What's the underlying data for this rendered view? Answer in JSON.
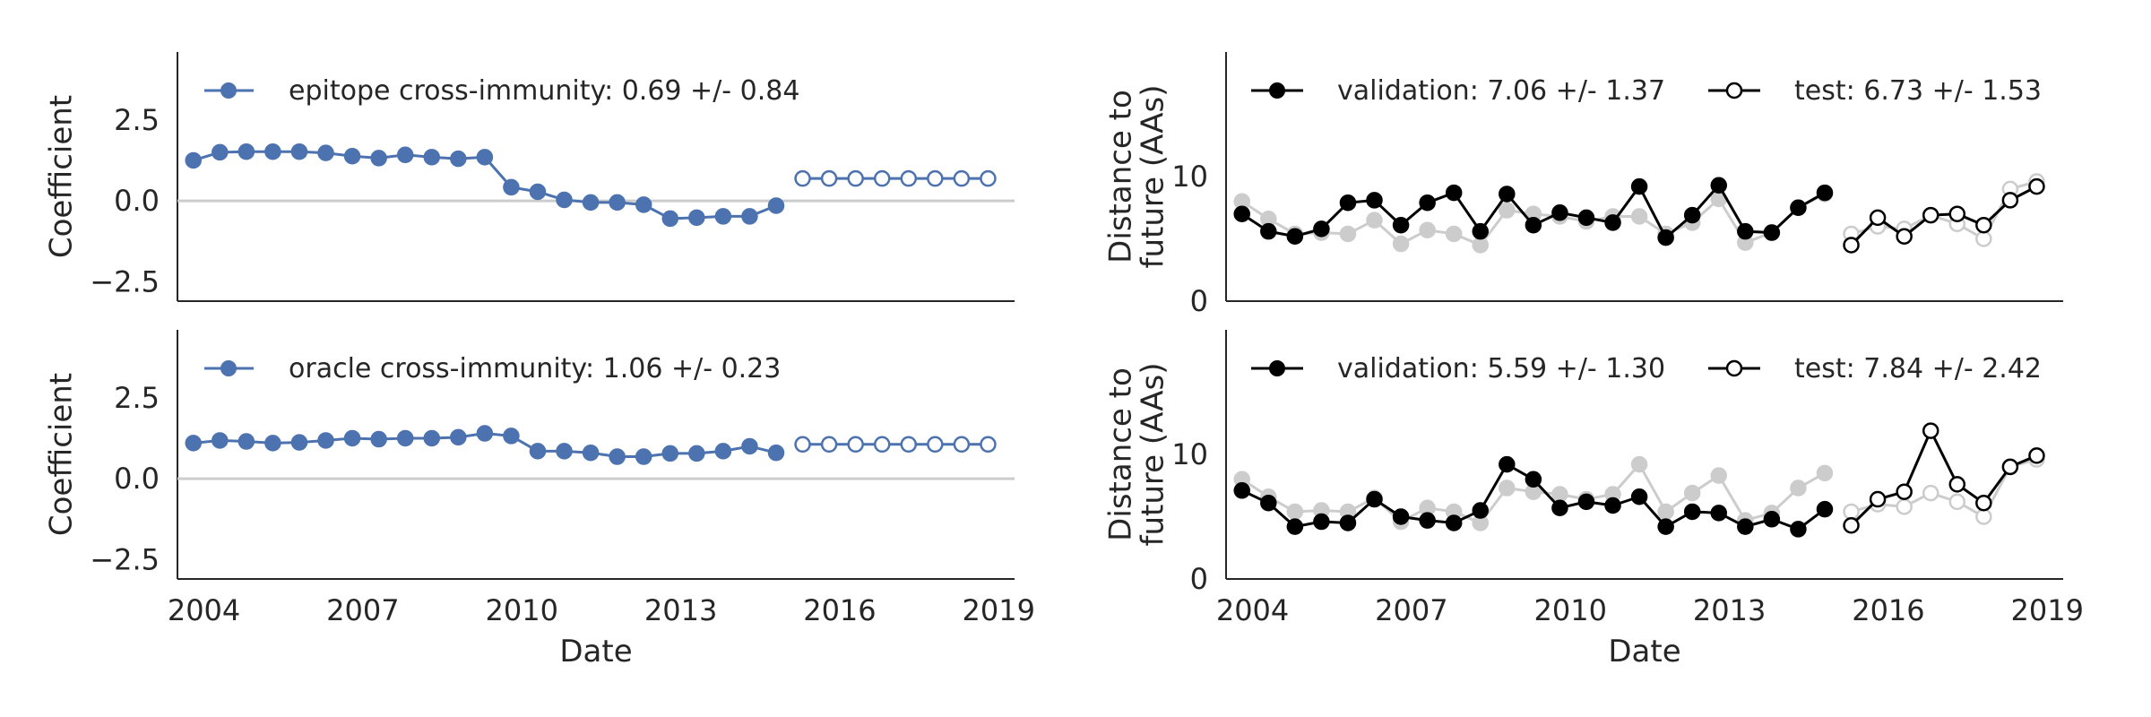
{
  "figure": {
    "x_axis_label": "Date",
    "x_ticks": [
      "2004",
      "2007",
      "2010",
      "2013",
      "2016",
      "2019"
    ]
  },
  "chart_data": [
    {
      "type": "line",
      "panel": "coefficient-top",
      "ylabel": "Coefficient",
      "xlabel": "",
      "xlim": [
        2003.5,
        2019.3
      ],
      "ylim": [
        -3.1,
        4.6
      ],
      "y_ticks": [
        2.5,
        0.0,
        -2.5
      ],
      "y_tick_labels": [
        "2.5",
        "0.0",
        "−2.5"
      ],
      "reference_line_y": 0,
      "reference_line_color": "#cccccc",
      "legend_placement": "top-left",
      "legend_label": "epitope cross-immunity: 0.69 +/- 0.84",
      "series_color": "#4c72b0",
      "validation": {
        "x": [
          2003.8,
          2004.3,
          2004.8,
          2005.3,
          2005.8,
          2006.3,
          2006.8,
          2007.3,
          2007.8,
          2008.3,
          2008.8,
          2009.3,
          2009.8,
          2010.3,
          2010.8,
          2011.3,
          2011.8,
          2012.3,
          2012.8,
          2013.3,
          2013.8,
          2014.3,
          2014.8
        ],
        "y": [
          1.25,
          1.5,
          1.52,
          1.52,
          1.52,
          1.48,
          1.38,
          1.32,
          1.42,
          1.35,
          1.3,
          1.35,
          0.42,
          0.28,
          0.03,
          -0.05,
          -0.05,
          -0.12,
          -0.55,
          -0.52,
          -0.48,
          -0.48,
          -0.15
        ]
      },
      "test": {
        "x": [
          2015.3,
          2015.8,
          2016.3,
          2016.8,
          2017.3,
          2017.8,
          2018.3,
          2018.8
        ],
        "y": [
          0.69,
          0.69,
          0.69,
          0.69,
          0.69,
          0.69,
          0.69,
          0.69
        ]
      }
    },
    {
      "type": "line",
      "panel": "coefficient-bottom",
      "ylabel": "Coefficient",
      "xlabel": "Date",
      "xlim": [
        2003.5,
        2019.3
      ],
      "ylim": [
        -3.1,
        4.6
      ],
      "y_ticks": [
        2.5,
        0.0,
        -2.5
      ],
      "y_tick_labels": [
        "2.5",
        "0.0",
        "−2.5"
      ],
      "reference_line_y": 0,
      "reference_line_color": "#cccccc",
      "legend_placement": "top-left",
      "legend_label": "oracle cross-immunity: 1.06 +/- 0.23",
      "series_color": "#4c72b0",
      "validation": {
        "x": [
          2003.8,
          2004.3,
          2004.8,
          2005.3,
          2005.8,
          2006.3,
          2006.8,
          2007.3,
          2007.8,
          2008.3,
          2008.8,
          2009.3,
          2009.8,
          2010.3,
          2010.8,
          2011.3,
          2011.8,
          2012.3,
          2012.8,
          2013.3,
          2013.8,
          2014.3,
          2014.8
        ],
        "y": [
          1.1,
          1.18,
          1.15,
          1.1,
          1.12,
          1.18,
          1.25,
          1.22,
          1.25,
          1.25,
          1.28,
          1.4,
          1.32,
          0.85,
          0.85,
          0.8,
          0.68,
          0.68,
          0.78,
          0.78,
          0.85,
          1.0,
          0.8
        ]
      },
      "test": {
        "x": [
          2015.3,
          2015.8,
          2016.3,
          2016.8,
          2017.3,
          2017.8,
          2018.3,
          2018.8
        ],
        "y": [
          1.06,
          1.06,
          1.06,
          1.06,
          1.06,
          1.06,
          1.06,
          1.06
        ]
      }
    },
    {
      "type": "line",
      "panel": "distance-top",
      "ylabel": "Distance to\nfuture (AAs)",
      "ylabel_lines": [
        "Distance to",
        "future (AAs)"
      ],
      "xlabel": "",
      "xlim": [
        2003.5,
        2019.3
      ],
      "ylim": [
        0,
        20
      ],
      "y_ticks": [
        10,
        0
      ],
      "y_tick_labels": [
        "10",
        "0"
      ],
      "legend_placement": "top",
      "legend_labels": [
        "validation: 7.06 +/- 1.37",
        "test: 6.73 +/- 1.53"
      ],
      "series_color": "#000000",
      "baseline_color": "#cccccc",
      "validation": {
        "x": [
          2003.8,
          2004.3,
          2004.8,
          2005.3,
          2005.8,
          2006.3,
          2006.8,
          2007.3,
          2007.8,
          2008.3,
          2008.8,
          2009.3,
          2009.8,
          2010.3,
          2010.8,
          2011.3,
          2011.8,
          2012.3,
          2012.8,
          2013.3,
          2013.8,
          2014.3,
          2014.8
        ],
        "y": [
          7.0,
          5.6,
          5.2,
          5.8,
          7.9,
          8.1,
          6.1,
          7.9,
          8.7,
          5.6,
          8.6,
          6.1,
          7.1,
          6.7,
          6.3,
          9.2,
          5.1,
          6.9,
          9.3,
          5.6,
          5.5,
          7.5,
          8.7
        ]
      },
      "validation_baseline": {
        "x": [
          2003.8,
          2004.3,
          2004.8,
          2005.3,
          2005.8,
          2006.3,
          2006.8,
          2007.3,
          2007.8,
          2008.3,
          2008.8,
          2009.3,
          2009.8,
          2010.3,
          2010.8,
          2011.3,
          2011.8,
          2012.3,
          2012.8,
          2013.3,
          2013.8,
          2014.3,
          2014.8
        ],
        "y": [
          8.0,
          6.6,
          5.4,
          5.5,
          5.4,
          6.5,
          4.6,
          5.7,
          5.4,
          4.5,
          7.3,
          7.0,
          6.8,
          6.4,
          6.8,
          6.8,
          5.4,
          6.3,
          8.2,
          4.7,
          5.5,
          7.5,
          8.6
        ]
      },
      "test": {
        "x": [
          2015.3,
          2015.8,
          2016.3,
          2016.8,
          2017.3,
          2017.8,
          2018.3,
          2018.8
        ],
        "y": [
          4.5,
          6.7,
          5.2,
          6.9,
          7.0,
          6.1,
          8.1,
          9.2
        ]
      },
      "test_baseline": {
        "x": [
          2015.3,
          2015.8,
          2016.3,
          2016.8,
          2017.3,
          2017.8,
          2018.3,
          2018.8
        ],
        "y": [
          5.4,
          6.0,
          5.8,
          6.9,
          6.2,
          5.0,
          9.0,
          9.6
        ]
      }
    },
    {
      "type": "line",
      "panel": "distance-bottom",
      "ylabel": "Distance to\nfuture (AAs)",
      "ylabel_lines": [
        "Distance to",
        "future (AAs)"
      ],
      "xlabel": "Date",
      "xlim": [
        2003.5,
        2019.3
      ],
      "ylim": [
        0,
        20
      ],
      "y_ticks": [
        10,
        0
      ],
      "y_tick_labels": [
        "10",
        "0"
      ],
      "legend_placement": "top",
      "legend_labels": [
        "validation: 5.59 +/- 1.30",
        "test: 7.84 +/- 2.42"
      ],
      "series_color": "#000000",
      "baseline_color": "#cccccc",
      "validation": {
        "x": [
          2003.8,
          2004.3,
          2004.8,
          2005.3,
          2005.8,
          2006.3,
          2006.8,
          2007.3,
          2007.8,
          2008.3,
          2008.8,
          2009.3,
          2009.8,
          2010.3,
          2010.8,
          2011.3,
          2011.8,
          2012.3,
          2012.8,
          2013.3,
          2013.8,
          2014.3,
          2014.8
        ],
        "y": [
          7.1,
          6.1,
          4.2,
          4.6,
          4.5,
          6.4,
          5.0,
          4.7,
          4.5,
          5.5,
          9.2,
          8.0,
          5.7,
          6.2,
          5.9,
          6.6,
          4.2,
          5.4,
          5.3,
          4.2,
          4.8,
          4.0,
          5.6
        ]
      },
      "validation_baseline": {
        "x": [
          2003.8,
          2004.3,
          2004.8,
          2005.3,
          2005.8,
          2006.3,
          2006.8,
          2007.3,
          2007.8,
          2008.3,
          2008.8,
          2009.3,
          2009.8,
          2010.3,
          2010.8,
          2011.3,
          2011.8,
          2012.3,
          2012.8,
          2013.3,
          2013.8,
          2014.3,
          2014.8
        ],
        "y": [
          8.0,
          6.6,
          5.4,
          5.5,
          5.4,
          6.5,
          4.6,
          5.7,
          5.4,
          4.5,
          7.3,
          7.0,
          6.8,
          6.4,
          6.8,
          9.2,
          5.4,
          6.9,
          8.3,
          4.7,
          5.3,
          7.3,
          8.5
        ]
      },
      "test": {
        "x": [
          2015.3,
          2015.8,
          2016.3,
          2016.8,
          2017.3,
          2017.8,
          2018.3,
          2018.8
        ],
        "y": [
          4.3,
          6.4,
          7.0,
          11.9,
          7.6,
          6.1,
          9.0,
          9.9
        ]
      },
      "test_baseline": {
        "x": [
          2015.3,
          2015.8,
          2016.3,
          2016.8,
          2017.3,
          2017.8,
          2018.3,
          2018.8
        ],
        "y": [
          5.4,
          6.0,
          5.8,
          6.9,
          6.2,
          5.0,
          9.0,
          9.6
        ]
      }
    }
  ]
}
